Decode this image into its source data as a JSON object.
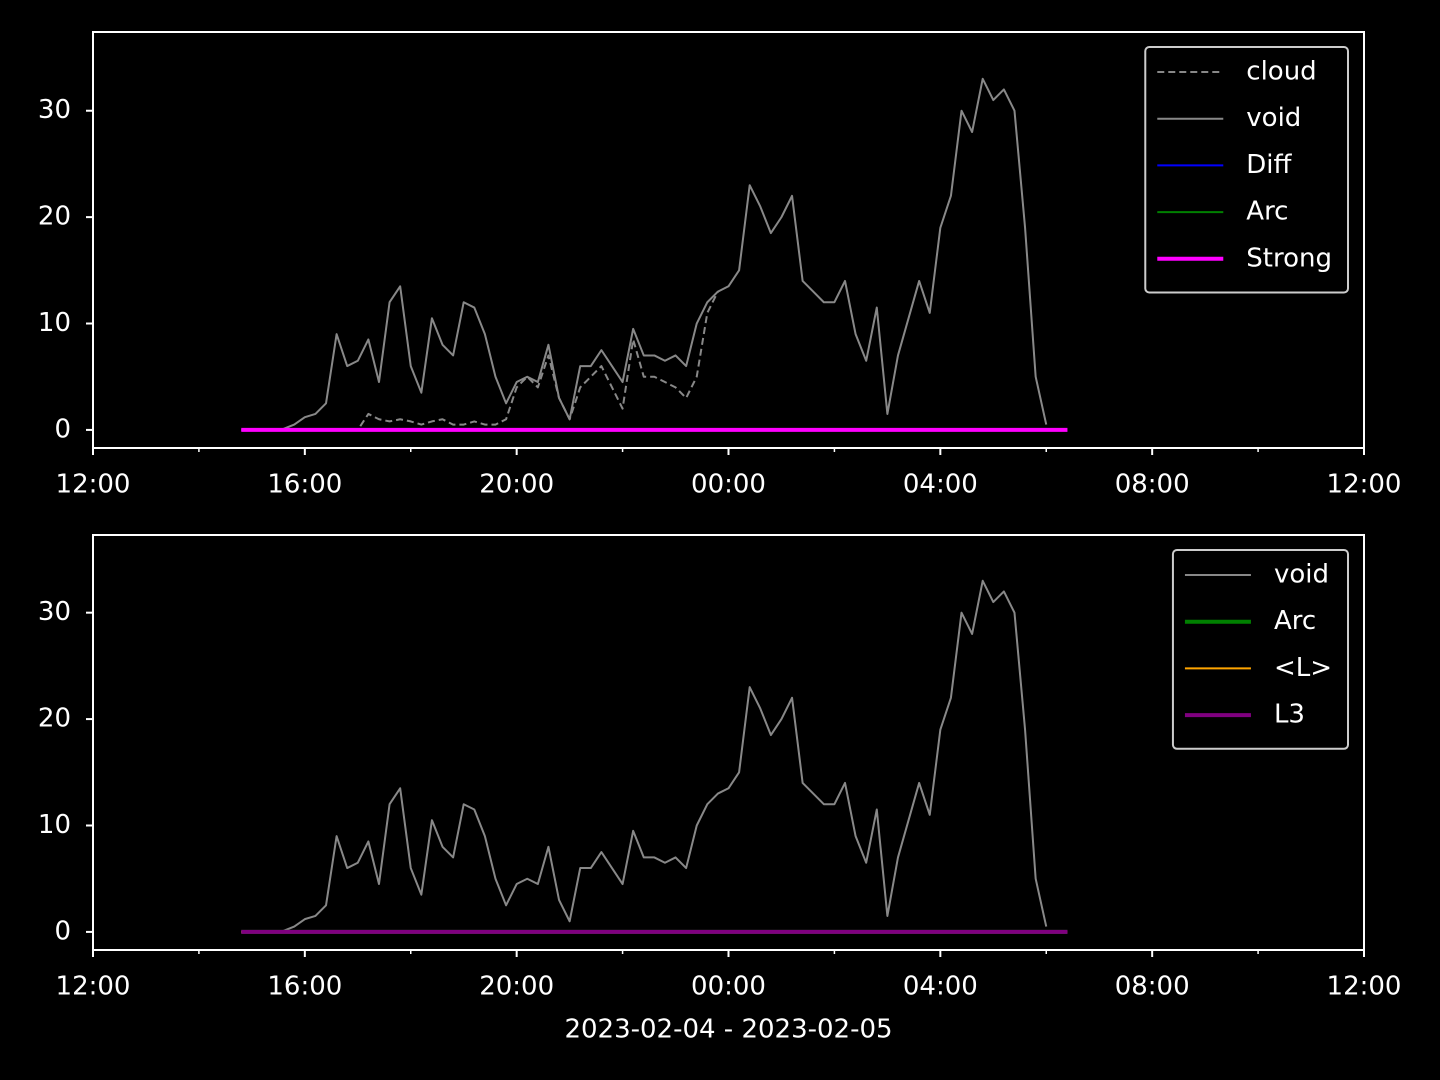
{
  "chart_data": [
    {
      "type": "line",
      "x": [
        2.8,
        3,
        3.2,
        3.4,
        3.6,
        3.8,
        4,
        4.2,
        4.4,
        4.6,
        4.8,
        5,
        5.2,
        5.4,
        5.6,
        5.8,
        6,
        6.2,
        6.4,
        6.6,
        6.8,
        7,
        7.2,
        7.4,
        7.6,
        7.8,
        8,
        8.2,
        8.4,
        8.6,
        8.8,
        9,
        9.2,
        9.4,
        9.6,
        9.8,
        10,
        10.2,
        10.4,
        10.6,
        10.8,
        11,
        11.2,
        11.4,
        11.6,
        11.8,
        12,
        12.2,
        12.4,
        12.6,
        12.8,
        13,
        13.2,
        13.4,
        13.6,
        13.8,
        14,
        14.2,
        14.4,
        14.6,
        14.8,
        15,
        15.2,
        15.4,
        15.6,
        15.8,
        16,
        16.2,
        16.4,
        16.6,
        16.8,
        17,
        17.2,
        17.4,
        17.6,
        17.8,
        18,
        18.2,
        18.4
      ],
      "series": [
        {
          "name": "cloud",
          "color": "#888888",
          "linestyle": "dashed",
          "linewidth": 2,
          "values": [
            0,
            0,
            0,
            0,
            0,
            0,
            0,
            0,
            0,
            0,
            0,
            0,
            1.5,
            1,
            0.8,
            1,
            0.8,
            0.5,
            0.8,
            1,
            0.5,
            0.5,
            0.8,
            0.5,
            0.5,
            1,
            4,
            5,
            4,
            7,
            3,
            1,
            4,
            5,
            6,
            4,
            2,
            8.5,
            5,
            5,
            4.5,
            4,
            3,
            5,
            11,
            13,
            null,
            null,
            null,
            null,
            null,
            null,
            null,
            null,
            null,
            null,
            null,
            null,
            null,
            null,
            null,
            null,
            null,
            null,
            null,
            null,
            null,
            null,
            null,
            null,
            null,
            null,
            null,
            null,
            null,
            null,
            null,
            null,
            null
          ]
        },
        {
          "name": "void",
          "color": "#888888",
          "linestyle": "solid",
          "linewidth": 2,
          "values": [
            0,
            0,
            0,
            0,
            0.1,
            0.5,
            1.2,
            1.5,
            2.5,
            9,
            6,
            6.5,
            8.5,
            4.5,
            12,
            13.5,
            6,
            3.5,
            10.5,
            8,
            7,
            12,
            11.5,
            9,
            5,
            2.5,
            4.5,
            5,
            4.5,
            8,
            3,
            1,
            6,
            6,
            7.5,
            6,
            4.5,
            9.5,
            7,
            7,
            6.5,
            7,
            6,
            10,
            12,
            13,
            13.5,
            15,
            23,
            21,
            18.5,
            20,
            22,
            14,
            13,
            12,
            12,
            14,
            9,
            6.5,
            11.5,
            1.5,
            7,
            10.5,
            14,
            11,
            19,
            22,
            30,
            28,
            33,
            31,
            32,
            30,
            19,
            5,
            0.5,
            null,
            null
          ]
        },
        {
          "name": "Diff",
          "color": "#0000ff",
          "linestyle": "solid",
          "linewidth": 2,
          "values": [
            0,
            0,
            0,
            0,
            0,
            0,
            0,
            0,
            0,
            0,
            0,
            0,
            0,
            0,
            0,
            0,
            0,
            0,
            0,
            0,
            0,
            0,
            0,
            0,
            0,
            0,
            0,
            0,
            0,
            0,
            0,
            0,
            0,
            0,
            0,
            0,
            0,
            0,
            0,
            0,
            0,
            0,
            0,
            0,
            0,
            0,
            0,
            0,
            0,
            0,
            0,
            0,
            0,
            0,
            0,
            0,
            0,
            0,
            0,
            0,
            0,
            0,
            0,
            0,
            0,
            0,
            0,
            0,
            0,
            0,
            0,
            0,
            0,
            0,
            0,
            0,
            0,
            0,
            0
          ]
        },
        {
          "name": "Arc",
          "color": "#008000",
          "linestyle": "solid",
          "linewidth": 2,
          "values": [
            0,
            0,
            0,
            0,
            0,
            0,
            0,
            0,
            0,
            0,
            0,
            0,
            0,
            0,
            0,
            0,
            0,
            0,
            0,
            0,
            0,
            0,
            0,
            0,
            0,
            0,
            0,
            0,
            0,
            0,
            0,
            0,
            0,
            0,
            0,
            0,
            0,
            0,
            0,
            0,
            0,
            0,
            0,
            0,
            0,
            0,
            0,
            0,
            0,
            0,
            0,
            0,
            0,
            0,
            0,
            0,
            0,
            0,
            0,
            0,
            0,
            0,
            0,
            0,
            0,
            0,
            0,
            0,
            0,
            0,
            0,
            0,
            0,
            0,
            0,
            0,
            0,
            0,
            0
          ]
        },
        {
          "name": "Strong",
          "color": "#ff00ff",
          "linestyle": "solid",
          "linewidth": 4,
          "values": [
            0,
            0,
            0,
            0,
            0,
            0,
            0,
            0,
            0,
            0,
            0,
            0,
            0,
            0,
            0,
            0,
            0,
            0,
            0,
            0,
            0,
            0,
            0,
            0,
            0,
            0,
            0,
            0,
            0,
            0,
            0,
            0,
            0,
            0,
            0,
            0,
            0,
            0,
            0,
            0,
            0,
            0,
            0,
            0,
            0,
            0,
            0,
            0,
            0,
            0,
            0,
            0,
            0,
            0,
            0,
            0,
            0,
            0,
            0,
            0,
            0,
            0,
            0,
            0,
            0,
            0,
            0,
            0,
            0,
            0,
            0,
            0,
            0,
            0,
            0,
            0,
            0,
            0,
            0
          ]
        }
      ],
      "xlim": [
        0,
        24
      ],
      "xticks": [
        {
          "value": 0,
          "label": "12:00"
        },
        {
          "value": 4,
          "label": "16:00"
        },
        {
          "value": 8,
          "label": "20:00"
        },
        {
          "value": 12,
          "label": "00:00"
        },
        {
          "value": 16,
          "label": "04:00"
        },
        {
          "value": 20,
          "label": "08:00"
        },
        {
          "value": 24,
          "label": "12:00"
        }
      ],
      "xminorticks": [
        2,
        6,
        10,
        14,
        18,
        22
      ],
      "ylim": [
        -1.7,
        37.4
      ],
      "yticks": [
        0,
        10,
        20,
        30
      ],
      "legend": "upper right"
    },
    {
      "type": "line",
      "x": [
        2.8,
        3,
        3.2,
        3.4,
        3.6,
        3.8,
        4,
        4.2,
        4.4,
        4.6,
        4.8,
        5,
        5.2,
        5.4,
        5.6,
        5.8,
        6,
        6.2,
        6.4,
        6.6,
        6.8,
        7,
        7.2,
        7.4,
        7.6,
        7.8,
        8,
        8.2,
        8.4,
        8.6,
        8.8,
        9,
        9.2,
        9.4,
        9.6,
        9.8,
        10,
        10.2,
        10.4,
        10.6,
        10.8,
        11,
        11.2,
        11.4,
        11.6,
        11.8,
        12,
        12.2,
        12.4,
        12.6,
        12.8,
        13,
        13.2,
        13.4,
        13.6,
        13.8,
        14,
        14.2,
        14.4,
        14.6,
        14.8,
        15,
        15.2,
        15.4,
        15.6,
        15.8,
        16,
        16.2,
        16.4,
        16.6,
        16.8,
        17,
        17.2,
        17.4,
        17.6,
        17.8,
        18,
        18.2,
        18.4
      ],
      "series": [
        {
          "name": "void",
          "color": "#888888",
          "linestyle": "solid",
          "linewidth": 2,
          "values": [
            0,
            0,
            0,
            0,
            0.1,
            0.5,
            1.2,
            1.5,
            2.5,
            9,
            6,
            6.5,
            8.5,
            4.5,
            12,
            13.5,
            6,
            3.5,
            10.5,
            8,
            7,
            12,
            11.5,
            9,
            5,
            2.5,
            4.5,
            5,
            4.5,
            8,
            3,
            1,
            6,
            6,
            7.5,
            6,
            4.5,
            9.5,
            7,
            7,
            6.5,
            7,
            6,
            10,
            12,
            13,
            13.5,
            15,
            23,
            21,
            18.5,
            20,
            22,
            14,
            13,
            12,
            12,
            14,
            9,
            6.5,
            11.5,
            1.5,
            7,
            10.5,
            14,
            11,
            19,
            22,
            30,
            28,
            33,
            31,
            32,
            30,
            19,
            5,
            0.5,
            null,
            null
          ]
        },
        {
          "name": "Arc",
          "color": "#008000",
          "linestyle": "solid",
          "linewidth": 4,
          "values": [
            0,
            0,
            0,
            0,
            0,
            0,
            0,
            0,
            0,
            0,
            0,
            0,
            0,
            0,
            0,
            0,
            0,
            0,
            0,
            0,
            0,
            0,
            0,
            0,
            0,
            0,
            0,
            0,
            0,
            0,
            0,
            0,
            0,
            0,
            0,
            0,
            0,
            0,
            0,
            0,
            0,
            0,
            0,
            0,
            0,
            0,
            0,
            0,
            0,
            0,
            0,
            0,
            0,
            0,
            0,
            0,
            0,
            0,
            0,
            0,
            0,
            0,
            0,
            0,
            0,
            0,
            0,
            0,
            0,
            0,
            0,
            0,
            0,
            0,
            0,
            0,
            0,
            0,
            0
          ]
        },
        {
          "name": "<L>",
          "color": "#ffa500",
          "linestyle": "solid",
          "linewidth": 2,
          "values": [
            0,
            0,
            0,
            0,
            0,
            0,
            0,
            0,
            0,
            0,
            0,
            0,
            0,
            0,
            0,
            0,
            0,
            0,
            0,
            0,
            0,
            0,
            0,
            0,
            0,
            0,
            0,
            0,
            0,
            0,
            0,
            0,
            0,
            0,
            0,
            0,
            0,
            0,
            0,
            0,
            0,
            0,
            0,
            0,
            0,
            0,
            0,
            0,
            0,
            0,
            0,
            0,
            0,
            0,
            0,
            0,
            0,
            0,
            0,
            0,
            0,
            0,
            0,
            0,
            0,
            0,
            0,
            0,
            0,
            0,
            0,
            0,
            0,
            0,
            0,
            0,
            0,
            0,
            0
          ]
        },
        {
          "name": "L3",
          "color": "#800080",
          "linestyle": "solid",
          "linewidth": 4,
          "values": [
            0,
            0,
            0,
            0,
            0,
            0,
            0,
            0,
            0,
            0,
            0,
            0,
            0,
            0,
            0,
            0,
            0,
            0,
            0,
            0,
            0,
            0,
            0,
            0,
            0,
            0,
            0,
            0,
            0,
            0,
            0,
            0,
            0,
            0,
            0,
            0,
            0,
            0,
            0,
            0,
            0,
            0,
            0,
            0,
            0,
            0,
            0,
            0,
            0,
            0,
            0,
            0,
            0,
            0,
            0,
            0,
            0,
            0,
            0,
            0,
            0,
            0,
            0,
            0,
            0,
            0,
            0,
            0,
            0,
            0,
            0,
            0,
            0,
            0,
            0,
            0,
            0,
            0,
            0
          ]
        }
      ],
      "xlim": [
        0,
        24
      ],
      "xticks": [
        {
          "value": 0,
          "label": "12:00"
        },
        {
          "value": 4,
          "label": "16:00"
        },
        {
          "value": 8,
          "label": "20:00"
        },
        {
          "value": 12,
          "label": "00:00"
        },
        {
          "value": 16,
          "label": "04:00"
        },
        {
          "value": 20,
          "label": "08:00"
        },
        {
          "value": 24,
          "label": "12:00"
        }
      ],
      "xminorticks": [
        2,
        6,
        10,
        14,
        18,
        22
      ],
      "ylim": [
        -1.7,
        37.3
      ],
      "yticks": [
        0,
        10,
        20,
        30
      ],
      "xlabel": "2023-02-04 - 2023-02-05",
      "legend": "upper right"
    }
  ]
}
